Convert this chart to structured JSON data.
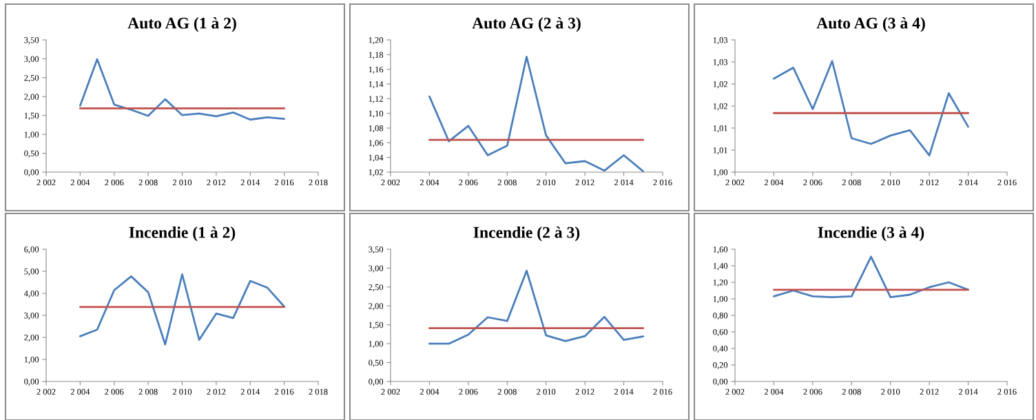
{
  "chart_data": [
    {
      "type": "line",
      "title": "Auto AG (1 à 2)",
      "x": [
        2004,
        2005,
        2006,
        2007,
        2008,
        2009,
        2010,
        2011,
        2012,
        2013,
        2014,
        2015,
        2016
      ],
      "series": [
        {
          "color": "#4a7ebb",
          "values": [
            1.76,
            2.99,
            1.79,
            1.65,
            1.49,
            1.93,
            1.51,
            1.55,
            1.48,
            1.58,
            1.39,
            1.45,
            1.41
          ]
        },
        {
          "color": "#c0504d",
          "x": [
            2004,
            2016
          ],
          "values": [
            1.69,
            1.69
          ]
        }
      ],
      "xlim": [
        2002,
        2018
      ],
      "xticks": [
        {
          "value": 2002,
          "label": "2 002"
        },
        {
          "value": 2004,
          "label": "2 004"
        },
        {
          "value": 2006,
          "label": "2 006"
        },
        {
          "value": 2008,
          "label": "2 008"
        },
        {
          "value": 2010,
          "label": "2 010"
        },
        {
          "value": 2012,
          "label": "2 012"
        },
        {
          "value": 2014,
          "label": "2 014"
        },
        {
          "value": 2016,
          "label": "2 016"
        },
        {
          "value": 2018,
          "label": "2 018"
        }
      ],
      "ylim": [
        0,
        3.5
      ],
      "yticks": [
        {
          "value": 0,
          "label": "0,00"
        },
        {
          "value": 0.5,
          "label": "0,50"
        },
        {
          "value": 1,
          "label": "1,00"
        },
        {
          "value": 1.5,
          "label": "1,50"
        },
        {
          "value": 2,
          "label": "2,00"
        },
        {
          "value": 2.5,
          "label": "2,50"
        },
        {
          "value": 3,
          "label": "3,00"
        },
        {
          "value": 3.5,
          "label": "3,50"
        }
      ]
    },
    {
      "type": "line",
      "title": "Auto AG (2 à 3)",
      "x": [
        2004,
        2005,
        2006,
        2007,
        2008,
        2009,
        2010,
        2011,
        2012,
        2013,
        2014,
        2015
      ],
      "series": [
        {
          "color": "#4a7ebb",
          "values": [
            1.123,
            1.062,
            1.083,
            1.043,
            1.056,
            1.177,
            1.07,
            1.032,
            1.035,
            1.022,
            1.043,
            1.021
          ]
        },
        {
          "color": "#c0504d",
          "x": [
            2004,
            2015
          ],
          "values": [
            1.064,
            1.064
          ]
        }
      ],
      "xlim": [
        2002,
        2016
      ],
      "xticks": [
        {
          "value": 2002,
          "label": "2 002"
        },
        {
          "value": 2004,
          "label": "2 004"
        },
        {
          "value": 2006,
          "label": "2 006"
        },
        {
          "value": 2008,
          "label": "2 008"
        },
        {
          "value": 2010,
          "label": "2 010"
        },
        {
          "value": 2012,
          "label": "2 012"
        },
        {
          "value": 2014,
          "label": "2 014"
        },
        {
          "value": 2016,
          "label": "2 016"
        }
      ],
      "ylim": [
        1.02,
        1.2
      ],
      "yticks": [
        {
          "value": 1.02,
          "label": "1,02"
        },
        {
          "value": 1.04,
          "label": "1,04"
        },
        {
          "value": 1.06,
          "label": "1,06"
        },
        {
          "value": 1.08,
          "label": "1,08"
        },
        {
          "value": 1.1,
          "label": "1,10"
        },
        {
          "value": 1.12,
          "label": "1,12"
        },
        {
          "value": 1.14,
          "label": "1,14"
        },
        {
          "value": 1.16,
          "label": "1,16"
        },
        {
          "value": 1.18,
          "label": "1,18"
        },
        {
          "value": 1.2,
          "label": "1,20"
        }
      ]
    },
    {
      "type": "line",
      "title": "Auto AG (3 à 4)",
      "x": [
        2004,
        2005,
        2006,
        2007,
        2008,
        2009,
        2010,
        2011,
        2012,
        2013,
        2014
      ],
      "series": [
        {
          "color": "#4a7ebb",
          "values": [
            1.0212,
            1.0237,
            1.0143,
            1.0252,
            1.0077,
            1.0064,
            1.0083,
            1.0095,
            1.0038,
            1.0179,
            1.0103
          ]
        },
        {
          "color": "#c0504d",
          "x": [
            2004,
            2014
          ],
          "values": [
            1.0134,
            1.0134
          ]
        }
      ],
      "xlim": [
        2002,
        2016
      ],
      "xticks": [
        {
          "value": 2002,
          "label": "2 002"
        },
        {
          "value": 2004,
          "label": "2 004"
        },
        {
          "value": 2006,
          "label": "2 006"
        },
        {
          "value": 2008,
          "label": "2 008"
        },
        {
          "value": 2010,
          "label": "2 010"
        },
        {
          "value": 2012,
          "label": "2 012"
        },
        {
          "value": 2014,
          "label": "2 014"
        },
        {
          "value": 2016,
          "label": "2 016"
        }
      ],
      "ylim": [
        1.0,
        1.03
      ],
      "yticks": [
        {
          "value": 1.0,
          "label": "1,00"
        },
        {
          "value": 1.005,
          "label": "1,01"
        },
        {
          "value": 1.01,
          "label": "1,01"
        },
        {
          "value": 1.015,
          "label": "1,02"
        },
        {
          "value": 1.02,
          "label": "1,02"
        },
        {
          "value": 1.025,
          "label": "1,03"
        },
        {
          "value": 1.03,
          "label": "1,03"
        }
      ]
    },
    {
      "type": "line",
      "title": "Incendie (1 à 2)",
      "x": [
        2004,
        2005,
        2006,
        2007,
        2008,
        2009,
        2010,
        2011,
        2012,
        2013,
        2014,
        2015,
        2016
      ],
      "series": [
        {
          "color": "#4a7ebb",
          "values": [
            2.05,
            2.35,
            4.14,
            4.77,
            4.05,
            1.68,
            4.86,
            1.89,
            3.08,
            2.88,
            4.56,
            4.26,
            3.4
          ]
        },
        {
          "color": "#c0504d",
          "x": [
            2004,
            2016
          ],
          "values": [
            3.38,
            3.38
          ]
        }
      ],
      "xlim": [
        2002,
        2018
      ],
      "xticks": [
        {
          "value": 2002,
          "label": "2 002"
        },
        {
          "value": 2004,
          "label": "2 004"
        },
        {
          "value": 2006,
          "label": "2 006"
        },
        {
          "value": 2008,
          "label": "2 008"
        },
        {
          "value": 2010,
          "label": "2 010"
        },
        {
          "value": 2012,
          "label": "2 012"
        },
        {
          "value": 2014,
          "label": "2 014"
        },
        {
          "value": 2016,
          "label": "2 016"
        },
        {
          "value": 2018,
          "label": "2 018"
        }
      ],
      "ylim": [
        0,
        6
      ],
      "yticks": [
        {
          "value": 0,
          "label": "0,00"
        },
        {
          "value": 1,
          "label": "1,00"
        },
        {
          "value": 2,
          "label": "2,00"
        },
        {
          "value": 3,
          "label": "3,00"
        },
        {
          "value": 4,
          "label": "4,00"
        },
        {
          "value": 5,
          "label": "5,00"
        },
        {
          "value": 6,
          "label": "6,00"
        }
      ]
    },
    {
      "type": "line",
      "title": "Incendie (2 à 3)",
      "x": [
        2004,
        2005,
        2006,
        2007,
        2008,
        2009,
        2010,
        2011,
        2012,
        2013,
        2014,
        2015
      ],
      "series": [
        {
          "color": "#4a7ebb",
          "values": [
            1.0,
            1.0,
            1.24,
            1.7,
            1.6,
            2.93,
            1.22,
            1.07,
            1.2,
            1.71,
            1.1,
            1.19
          ]
        },
        {
          "color": "#c0504d",
          "x": [
            2004,
            2015
          ],
          "values": [
            1.41,
            1.41
          ]
        }
      ],
      "xlim": [
        2002,
        2016
      ],
      "xticks": [
        {
          "value": 2002,
          "label": "2 002"
        },
        {
          "value": 2004,
          "label": "2 004"
        },
        {
          "value": 2006,
          "label": "2 006"
        },
        {
          "value": 2008,
          "label": "2 008"
        },
        {
          "value": 2010,
          "label": "2 010"
        },
        {
          "value": 2012,
          "label": "2 012"
        },
        {
          "value": 2014,
          "label": "2 014"
        },
        {
          "value": 2016,
          "label": "2 016"
        }
      ],
      "ylim": [
        0,
        3.5
      ],
      "yticks": [
        {
          "value": 0,
          "label": "0,00"
        },
        {
          "value": 0.5,
          "label": "0,50"
        },
        {
          "value": 1,
          "label": "1,00"
        },
        {
          "value": 1.5,
          "label": "1,50"
        },
        {
          "value": 2,
          "label": "2,00"
        },
        {
          "value": 2.5,
          "label": "2,50"
        },
        {
          "value": 3,
          "label": "3,00"
        },
        {
          "value": 3.5,
          "label": "3,50"
        }
      ]
    },
    {
      "type": "line",
      "title": "Incendie (3 à 4)",
      "x": [
        2004,
        2005,
        2006,
        2007,
        2008,
        2009,
        2010,
        2011,
        2012,
        2013,
        2014
      ],
      "series": [
        {
          "color": "#4a7ebb",
          "values": [
            1.03,
            1.1,
            1.03,
            1.02,
            1.03,
            1.51,
            1.02,
            1.05,
            1.14,
            1.2,
            1.11
          ]
        },
        {
          "color": "#c0504d",
          "x": [
            2004,
            2014
          ],
          "values": [
            1.11,
            1.11
          ]
        }
      ],
      "xlim": [
        2002,
        2016
      ],
      "xticks": [
        {
          "value": 2002,
          "label": "2 002"
        },
        {
          "value": 2004,
          "label": "2 004"
        },
        {
          "value": 2006,
          "label": "2 006"
        },
        {
          "value": 2008,
          "label": "2 008"
        },
        {
          "value": 2010,
          "label": "2 010"
        },
        {
          "value": 2012,
          "label": "2 012"
        },
        {
          "value": 2014,
          "label": "2 014"
        },
        {
          "value": 2016,
          "label": "2 016"
        }
      ],
      "ylim": [
        0,
        1.6
      ],
      "yticks": [
        {
          "value": 0,
          "label": "0,00"
        },
        {
          "value": 0.2,
          "label": "0,20"
        },
        {
          "value": 0.4,
          "label": "0,40"
        },
        {
          "value": 0.6,
          "label": "0,60"
        },
        {
          "value": 0.8,
          "label": "0,80"
        },
        {
          "value": 1,
          "label": "1,00"
        },
        {
          "value": 1.2,
          "label": "1,20"
        },
        {
          "value": 1.4,
          "label": "1,40"
        },
        {
          "value": 1.6,
          "label": "1,60"
        }
      ]
    }
  ]
}
